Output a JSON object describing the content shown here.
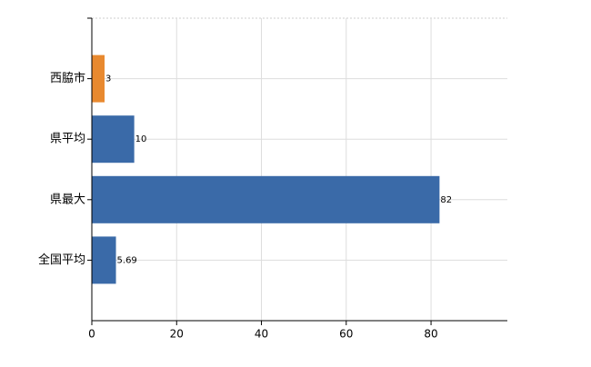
{
  "chart_data": {
    "type": "bar",
    "orientation": "horizontal",
    "categories": [
      "西脇市",
      "県平均",
      "県最大",
      "全国平均"
    ],
    "values": [
      3,
      10,
      82,
      5.69
    ],
    "colors": [
      "#e8892f",
      "#3a6aa8",
      "#3a6aa8",
      "#3a6aa8"
    ],
    "xlim": [
      0,
      98
    ],
    "xticks": [
      0,
      20,
      40,
      60,
      80
    ],
    "grid": true
  }
}
